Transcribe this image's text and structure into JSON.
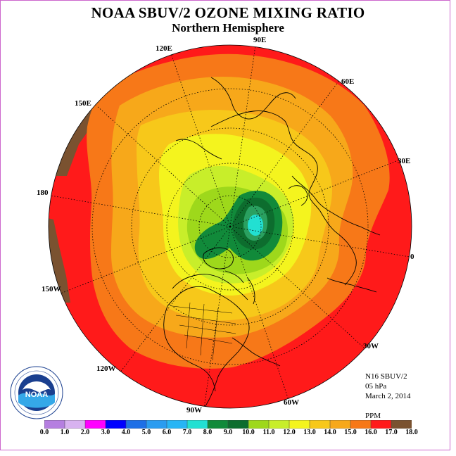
{
  "title": "NOAA SBUV/2 OZONE MIXING RATIO",
  "subtitle": "Northern Hemisphere",
  "longitude_labels": [
    {
      "text": "90E",
      "name": "lon-label-90e"
    },
    {
      "text": "120E",
      "name": "lon-label-120e"
    },
    {
      "text": "60E",
      "name": "lon-label-60e"
    },
    {
      "text": "150E",
      "name": "lon-label-150e"
    },
    {
      "text": "30E",
      "name": "lon-label-30e"
    },
    {
      "text": "180",
      "name": "lon-label-180"
    },
    {
      "text": "0",
      "name": "lon-label-0"
    },
    {
      "text": "150W",
      "name": "lon-label-150w"
    },
    {
      "text": "30W",
      "name": "lon-label-30w"
    },
    {
      "text": "120W",
      "name": "lon-label-120w"
    },
    {
      "text": "60W",
      "name": "lon-label-60w"
    },
    {
      "text": "90W",
      "name": "lon-label-90w"
    }
  ],
  "info": {
    "instrument": "N16 SBUV/2",
    "level": "05 hPa",
    "date": "March 2, 2014",
    "units": "PPM"
  },
  "colorbar": {
    "ticks": [
      "0.0",
      "1.0",
      "2.0",
      "3.0",
      "4.0",
      "5.0",
      "6.0",
      "7.0",
      "8.0",
      "9.0",
      "10.0",
      "11.0",
      "12.0",
      "13.0",
      "14.0",
      "15.0",
      "16.0",
      "17.0",
      "18.0"
    ],
    "colors": [
      "#b57fe0",
      "#d8b2f0",
      "#ff00ff",
      "#0000ff",
      "#1e6fe6",
      "#2a9cf0",
      "#27b5f5",
      "#22e0d2",
      "#118a3a",
      "#0d6d2e",
      "#9ed81b",
      "#c8ee2a",
      "#f4f41e",
      "#f7c81a",
      "#f7a81a",
      "#f77818",
      "#ff1a1a",
      "#7a5230"
    ]
  },
  "logo": {
    "text": "NOAA"
  },
  "map_fields": {
    "projection": "north-polar-stereographic",
    "background_level_ppm": "16.0-17.0",
    "equatorial_edge_color": "#ff1a1a",
    "maximum_region_color": "#7a5230",
    "polar_low_color": "#22e0d2"
  }
}
